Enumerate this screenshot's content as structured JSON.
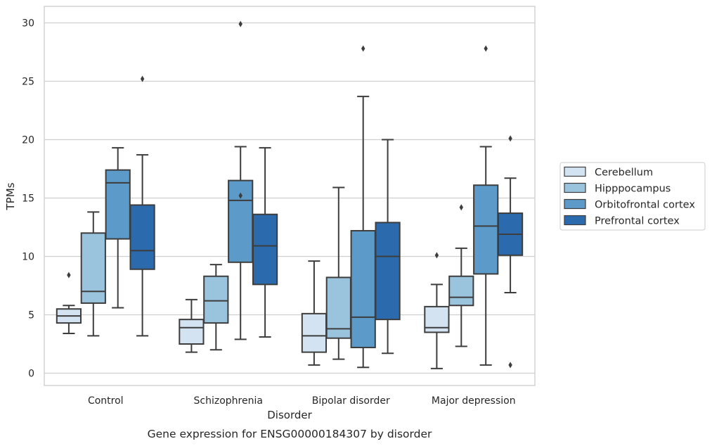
{
  "chart_data": {
    "type": "box",
    "xlabel": "Disorder",
    "ylabel": "TPMs",
    "caption": "Gene expression for ENSG00000184307 by disorder",
    "ylim": [
      -1,
      31.5
    ],
    "yticks": [
      0,
      5,
      10,
      15,
      20,
      25,
      30
    ],
    "grid": true,
    "legend_position": "right",
    "categories": [
      "Control",
      "Schizophrenia",
      "Bipolar disorder",
      "Major depression"
    ],
    "series": [
      {
        "name": "Cerebellum",
        "color": "#d4e3f1",
        "boxes": [
          {
            "whislo": 3.4,
            "q1": 4.3,
            "med": 4.9,
            "q3": 5.5,
            "whishi": 5.8,
            "fliers": [
              8.4
            ]
          },
          {
            "whislo": 1.8,
            "q1": 2.5,
            "med": 3.9,
            "q3": 4.6,
            "whishi": 6.3,
            "fliers": []
          },
          {
            "whislo": 0.7,
            "q1": 1.8,
            "med": 3.2,
            "q3": 5.1,
            "whishi": 9.6,
            "fliers": []
          },
          {
            "whislo": 0.4,
            "q1": 3.5,
            "med": 3.9,
            "q3": 5.7,
            "whishi": 7.6,
            "fliers": [
              10.1
            ]
          }
        ]
      },
      {
        "name": "Hipppocampus",
        "color": "#9ac3dd",
        "boxes": [
          {
            "whislo": 3.2,
            "q1": 6.0,
            "med": 7.0,
            "q3": 12.0,
            "whishi": 13.8,
            "fliers": []
          },
          {
            "whislo": 2.0,
            "q1": 4.3,
            "med": 6.2,
            "q3": 8.3,
            "whishi": 9.3,
            "fliers": []
          },
          {
            "whislo": 1.2,
            "q1": 3.0,
            "med": 3.8,
            "q3": 8.2,
            "whishi": 15.9,
            "fliers": []
          },
          {
            "whislo": 2.3,
            "q1": 5.8,
            "med": 6.5,
            "q3": 8.3,
            "whishi": 10.7,
            "fliers": [
              14.2
            ]
          }
        ]
      },
      {
        "name": "Orbitofrontal cortex",
        "color": "#5b9ac9",
        "boxes": [
          {
            "whislo": 5.6,
            "q1": 11.5,
            "med": 16.3,
            "q3": 17.4,
            "whishi": 19.3,
            "fliers": []
          },
          {
            "whislo": 2.9,
            "q1": 9.5,
            "med": 14.8,
            "q3": 16.5,
            "whishi": 19.4,
            "fliers": [
              15.2,
              29.9
            ]
          },
          {
            "whislo": 0.5,
            "q1": 2.2,
            "med": 4.8,
            "q3": 12.2,
            "whishi": 23.7,
            "fliers": [
              27.8
            ]
          },
          {
            "whislo": 0.7,
            "q1": 8.5,
            "med": 12.6,
            "q3": 16.1,
            "whishi": 19.4,
            "fliers": [
              27.8
            ]
          }
        ]
      },
      {
        "name": "Prefrontal cortex",
        "color": "#2a6aad",
        "boxes": [
          {
            "whislo": 3.2,
            "q1": 8.9,
            "med": 10.5,
            "q3": 14.4,
            "whishi": 18.7,
            "fliers": [
              25.2
            ]
          },
          {
            "whislo": 3.1,
            "q1": 7.6,
            "med": 10.9,
            "q3": 13.6,
            "whishi": 19.3,
            "fliers": []
          },
          {
            "whislo": 1.7,
            "q1": 4.6,
            "med": 10.0,
            "q3": 12.9,
            "whishi": 20.0,
            "fliers": []
          },
          {
            "whislo": 6.9,
            "q1": 10.1,
            "med": 11.9,
            "q3": 13.7,
            "whishi": 16.7,
            "fliers": [
              0.7,
              20.1
            ]
          }
        ]
      }
    ]
  }
}
